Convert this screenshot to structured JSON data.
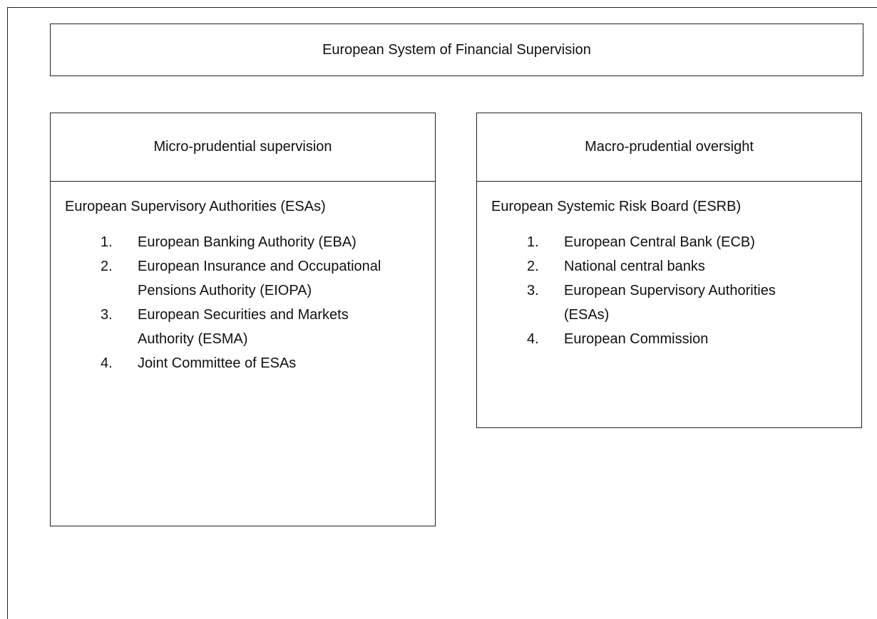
{
  "title": "European System of Financial Supervision",
  "columns": [
    {
      "heading": "Micro-prudential supervision",
      "body_title": "European Supervisory Authorities (ESAs)",
      "items": [
        {
          "number": "1.",
          "text": "European Banking Authority (EBA)"
        },
        {
          "number": "2.",
          "text": "European Insurance and Occupational Pensions Authority (EIOPA)"
        },
        {
          "number": "3.",
          "text": "European Securities and Markets Authority (ESMA)"
        },
        {
          "number": "4.",
          "text": "Joint Committee of ESAs"
        }
      ]
    },
    {
      "heading": "Macro-prudential oversight",
      "body_title": "European Systemic Risk Board (ESRB)",
      "items": [
        {
          "number": "1.",
          "text": "European Central Bank (ECB)"
        },
        {
          "number": "2.",
          "text": "National central banks"
        },
        {
          "number": "3.",
          "text": "European Supervisory Authorities (ESAs)"
        },
        {
          "number": "4.",
          "text": "European Commission"
        }
      ]
    }
  ]
}
